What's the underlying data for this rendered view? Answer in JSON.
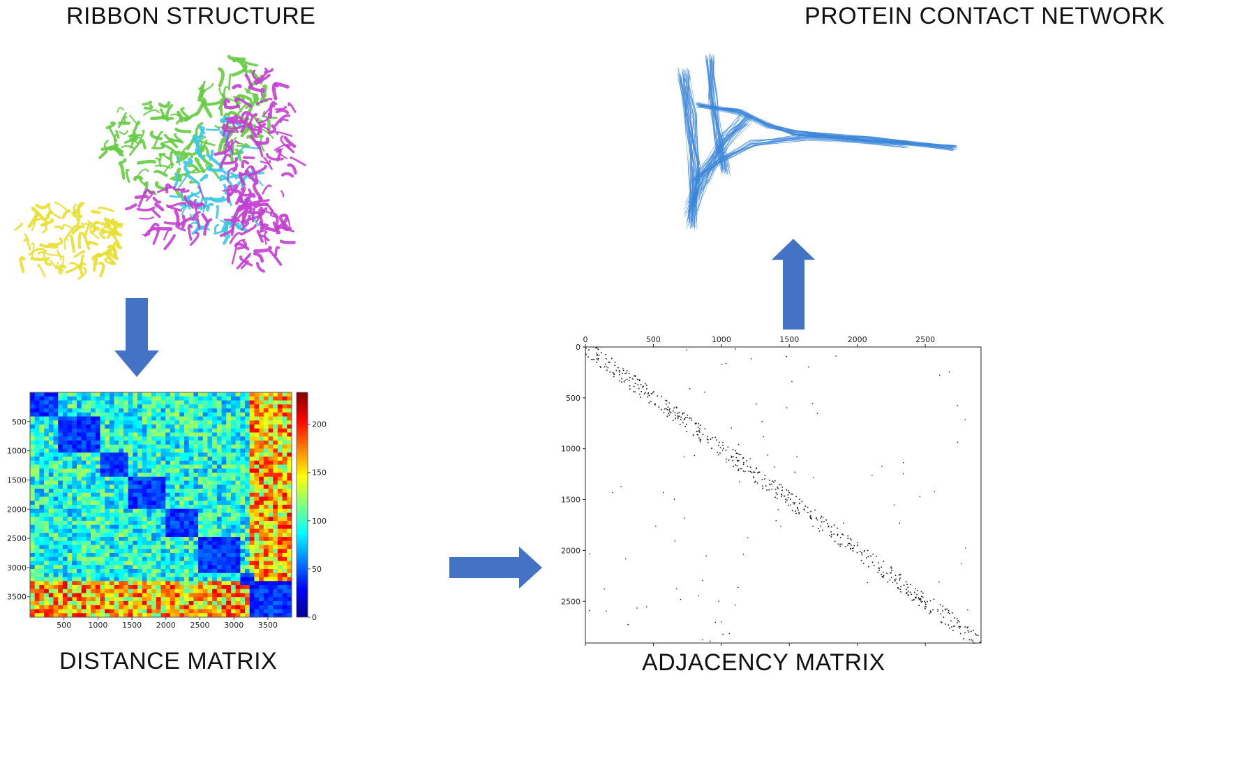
{
  "labels": {
    "ribbon": "RIBBON STRUCTURE",
    "network": "PROTEIN CONTACT NETWORK",
    "distance": "DISTANCE MATRIX",
    "adjacency": "ADJACENCY MATRIX"
  },
  "distance_matrix": {
    "x_ticks": [
      "500",
      "1000",
      "1500",
      "2000",
      "2500",
      "3000",
      "3500"
    ],
    "y_ticks": [
      "500",
      "1000",
      "1500",
      "2000",
      "2500",
      "3000",
      "3500"
    ],
    "colorbar_ticks": [
      "200",
      "150",
      "100",
      "50",
      "0"
    ]
  },
  "adjacency_matrix": {
    "x_ticks": [
      "0",
      "500",
      "1000",
      "1500",
      "2000",
      "2500"
    ],
    "y_ticks": [
      "0",
      "500",
      "1000",
      "1500",
      "2000",
      "2500"
    ]
  },
  "colors": {
    "arrow": "#4472c4",
    "network": "#3a86d8",
    "chain_green": "#66cc44",
    "chain_magenta": "#c33fd0",
    "chain_cyan": "#3cc8e0",
    "chain_yellow": "#e8df32"
  }
}
